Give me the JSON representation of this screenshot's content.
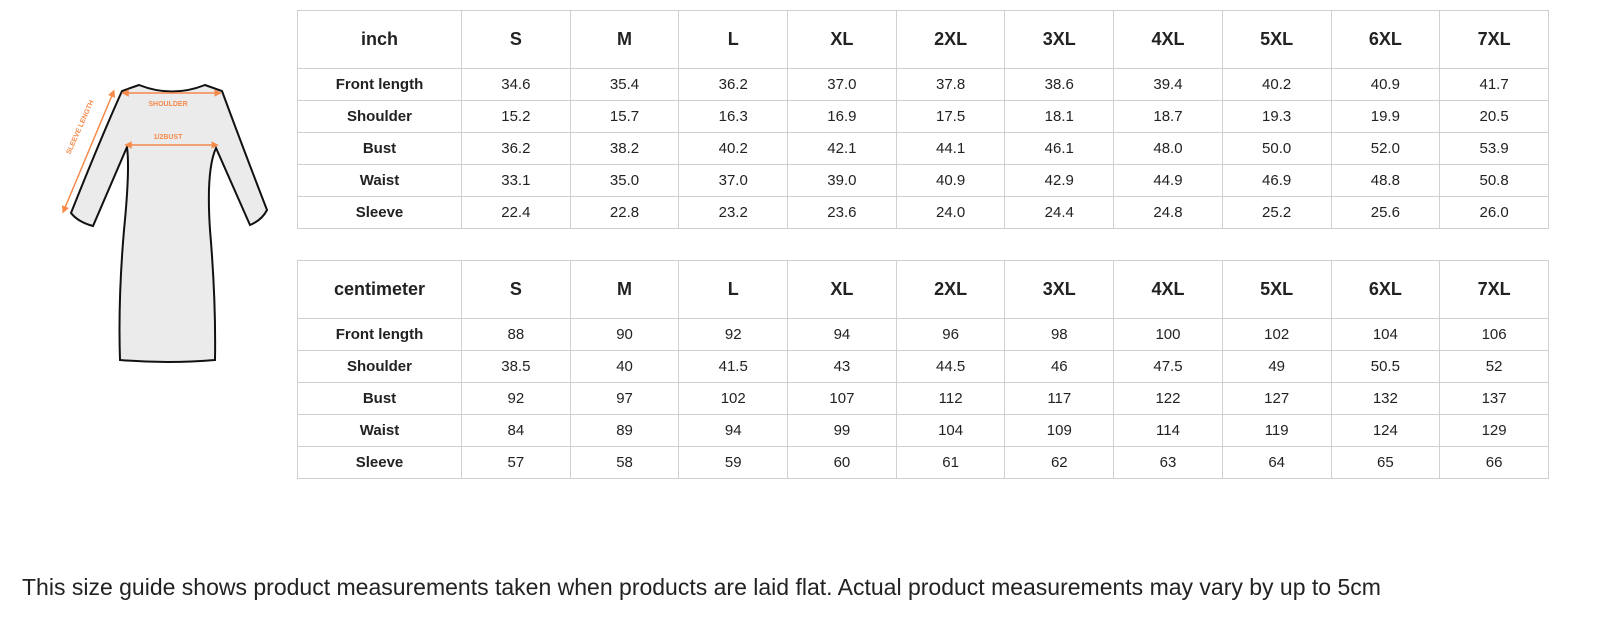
{
  "figure": {
    "labels": {
      "shoulder": "SHOULDER",
      "bust": "1/2BUST",
      "sleeve": "SLEEVE LENGTH"
    },
    "accent": "#f58a4b",
    "fill": "#ebebeb"
  },
  "sizes": [
    "S",
    "M",
    "L",
    "XL",
    "2XL",
    "3XL",
    "4XL",
    "5XL",
    "6XL",
    "7XL"
  ],
  "inch": {
    "unit": "inch",
    "rows": [
      {
        "label": "Front length",
        "values": [
          "34.6",
          "35.4",
          "36.2",
          "37.0",
          "37.8",
          "38.6",
          "39.4",
          "40.2",
          "40.9",
          "41.7"
        ]
      },
      {
        "label": "Shoulder",
        "values": [
          "15.2",
          "15.7",
          "16.3",
          "16.9",
          "17.5",
          "18.1",
          "18.7",
          "19.3",
          "19.9",
          "20.5"
        ]
      },
      {
        "label": "Bust",
        "values": [
          "36.2",
          "38.2",
          "40.2",
          "42.1",
          "44.1",
          "46.1",
          "48.0",
          "50.0",
          "52.0",
          "53.9"
        ]
      },
      {
        "label": "Waist",
        "values": [
          "33.1",
          "35.0",
          "37.0",
          "39.0",
          "40.9",
          "42.9",
          "44.9",
          "46.9",
          "48.8",
          "50.8"
        ]
      },
      {
        "label": "Sleeve",
        "values": [
          "22.4",
          "22.8",
          "23.2",
          "23.6",
          "24.0",
          "24.4",
          "24.8",
          "25.2",
          "25.6",
          "26.0"
        ]
      }
    ]
  },
  "cm": {
    "unit": "centimeter",
    "rows": [
      {
        "label": "Front length",
        "values": [
          "88",
          "90",
          "92",
          "94",
          "96",
          "98",
          "100",
          "102",
          "104",
          "106"
        ]
      },
      {
        "label": "Shoulder",
        "values": [
          "38.5",
          "40",
          "41.5",
          "43",
          "44.5",
          "46",
          "47.5",
          "49",
          "50.5",
          "52"
        ]
      },
      {
        "label": "Bust",
        "values": [
          "92",
          "97",
          "102",
          "107",
          "112",
          "117",
          "122",
          "127",
          "132",
          "137"
        ]
      },
      {
        "label": "Waist",
        "values": [
          "84",
          "89",
          "94",
          "99",
          "104",
          "109",
          "114",
          "119",
          "124",
          "129"
        ]
      },
      {
        "label": "Sleeve",
        "values": [
          "57",
          "58",
          "59",
          "60",
          "61",
          "62",
          "63",
          "64",
          "65",
          "66"
        ]
      }
    ]
  },
  "note": "This size guide shows product measurements taken when products are laid flat. Actual product measurements may vary by up to 5cm"
}
